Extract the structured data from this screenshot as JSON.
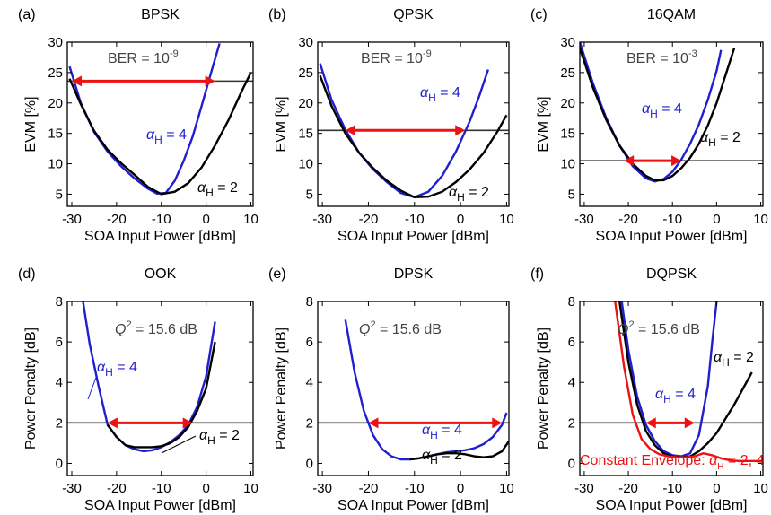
{
  "colors": {
    "alpha4": "#1f1fd0",
    "alpha2": "#000000",
    "constant": "#ee1111",
    "arrow": "#ee1111",
    "threshold": "#333333",
    "annotation_gray": "#444444"
  },
  "chart_data": [
    {
      "type": "line",
      "panel": "(a)",
      "title": "BPSK",
      "xlabel": "SOA Input Power [dBm]",
      "ylabel": "EVM [%]",
      "xlim": [
        -31,
        10.5
      ],
      "ylim": [
        3,
        30
      ],
      "xticks": [
        -30,
        -20,
        -10,
        0,
        10
      ],
      "yticks": [
        5,
        10,
        15,
        20,
        25,
        30
      ],
      "threshold": 23.6,
      "arrow": [
        -30,
        2
      ],
      "threshold_label": {
        "base": "BER = 10",
        "exp": "-9"
      },
      "series": [
        {
          "key": "alpha4",
          "label_sub": "H",
          "label_val": " = 4",
          "x": [
            -30.5,
            -28,
            -25,
            -22,
            -19,
            -16,
            -13,
            -11,
            -9,
            -7,
            -5,
            -3,
            -1,
            1,
            3
          ],
          "y": [
            26,
            20,
            15.2,
            12,
            9.6,
            7.6,
            5.9,
            5.1,
            5.2,
            7.2,
            10.5,
            14.5,
            19.5,
            24.7,
            29.8
          ]
        },
        {
          "key": "alpha2",
          "label_sub": "H",
          "label_val": " = 2",
          "x": [
            -30.5,
            -28,
            -25,
            -22,
            -19,
            -16,
            -13,
            -10,
            -7,
            -4,
            -1,
            2,
            5,
            8,
            10
          ],
          "y": [
            24,
            19.8,
            15.4,
            12.3,
            10.1,
            8.2,
            6.2,
            5,
            5.4,
            6.8,
            9.4,
            13,
            17.2,
            22,
            25
          ]
        }
      ]
    },
    {
      "type": "line",
      "panel": "(b)",
      "title": "QPSK",
      "xlabel": "SOA Input Power [dBm]",
      "ylabel": "EVM [%]",
      "xlim": [
        -31,
        10.5
      ],
      "ylim": [
        3,
        30
      ],
      "xticks": [
        -30,
        -20,
        -10,
        0,
        10
      ],
      "yticks": [
        5,
        10,
        15,
        20,
        25,
        30
      ],
      "threshold": 15.5,
      "arrow": [
        -25,
        1
      ],
      "threshold_label": {
        "base": "BER = 10",
        "exp": "-9"
      },
      "series": [
        {
          "key": "alpha4",
          "label_sub": "H",
          "label_val": " = 4",
          "x": [
            -30.5,
            -28,
            -25,
            -22,
            -19,
            -16,
            -13,
            -10,
            -7,
            -4,
            -1,
            2,
            4,
            6
          ],
          "y": [
            26.5,
            20.5,
            15.6,
            11.8,
            9.1,
            7,
            5.2,
            4.5,
            5.4,
            8,
            12,
            17,
            21,
            25.5
          ]
        },
        {
          "key": "alpha2",
          "label_sub": "H",
          "label_val": " = 2",
          "x": [
            -30.5,
            -28,
            -25,
            -22,
            -19,
            -16,
            -13,
            -10,
            -7,
            -4,
            -1,
            2,
            5,
            8,
            10
          ],
          "y": [
            24.5,
            19.5,
            15,
            11.8,
            9.3,
            7.2,
            5.6,
            4.5,
            4.6,
            5.4,
            7,
            9.1,
            11.8,
            15.3,
            18
          ]
        }
      ]
    },
    {
      "type": "line",
      "panel": "(c)",
      "title": "16QAM",
      "xlabel": "SOA Input Power [dBm]",
      "ylabel": "EVM [%]",
      "xlim": [
        -31,
        10.5
      ],
      "ylim": [
        3,
        30
      ],
      "xticks": [
        -30,
        -20,
        -10,
        0,
        10
      ],
      "yticks": [
        5,
        10,
        15,
        20,
        25,
        30
      ],
      "threshold": 10.5,
      "arrow": [
        -21,
        -8
      ],
      "threshold_label": {
        "base": "BER = 10",
        "exp": "-3"
      },
      "series": [
        {
          "key": "alpha4",
          "label_sub": "H",
          "label_val": " = 4",
          "x": [
            -31,
            -28,
            -25,
            -22,
            -19,
            -16,
            -14,
            -12,
            -10,
            -8,
            -6,
            -4,
            -2,
            0,
            1
          ],
          "y": [
            30,
            23.2,
            17.5,
            13,
            9.6,
            7.6,
            7.1,
            7.5,
            8.7,
            10.7,
            13.3,
            16.5,
            20.5,
            25.3,
            28.7
          ]
        },
        {
          "key": "alpha2",
          "label_sub": "H",
          "label_val": " = 2",
          "x": [
            -31,
            -28,
            -25,
            -22,
            -19,
            -16,
            -14,
            -12,
            -10,
            -8,
            -6,
            -4,
            -2,
            0,
            2,
            4
          ],
          "y": [
            29,
            22.5,
            17.2,
            13,
            10,
            8,
            7.3,
            7.3,
            8,
            9.3,
            11,
            13.3,
            16.3,
            20,
            24.5,
            29
          ]
        }
      ]
    },
    {
      "type": "line",
      "panel": "(d)",
      "title": "OOK",
      "xlabel": "SOA Input Power [dBm]",
      "ylabel": "Power Penalty [dB]",
      "xlim": [
        -31,
        10.5
      ],
      "ylim": [
        -0.6,
        8
      ],
      "xticks": [
        -30,
        -20,
        -10,
        0,
        10
      ],
      "yticks": [
        0,
        2,
        4,
        6,
        8
      ],
      "threshold": 2,
      "arrow": [
        -22,
        -3
      ],
      "threshold_label": {
        "base": "Q",
        "exp": "2",
        "suffix": " = 15.6 dB"
      },
      "series": [
        {
          "key": "alpha4",
          "label_sub": "H",
          "label_val": " = 4",
          "x": [
            -27.5,
            -26,
            -24,
            -22,
            -20,
            -18,
            -16,
            -14,
            -12,
            -10,
            -8,
            -6,
            -4,
            -2,
            0,
            2
          ],
          "y": [
            8,
            5.9,
            3.8,
            1.9,
            1.3,
            0.9,
            0.7,
            0.6,
            0.65,
            0.8,
            1.05,
            1.4,
            1.9,
            2.8,
            4.3,
            7
          ]
        },
        {
          "key": "alpha2",
          "label_sub": "H",
          "label_val": " = 2",
          "x": [
            -22,
            -20,
            -18,
            -16,
            -14,
            -12,
            -10,
            -8,
            -6,
            -4,
            -2,
            0,
            2
          ],
          "y": [
            1.9,
            1.3,
            0.9,
            0.8,
            0.8,
            0.8,
            0.85,
            1.0,
            1.3,
            1.8,
            2.6,
            3.7,
            6
          ]
        }
      ]
    },
    {
      "type": "line",
      "panel": "(e)",
      "title": "DPSK",
      "xlabel": "SOA Input Power [dBm]",
      "ylabel": "Power Penalty [dB]",
      "xlim": [
        -31,
        10.5
      ],
      "ylim": [
        -0.6,
        8
      ],
      "xticks": [
        -30,
        -20,
        -10,
        0,
        10
      ],
      "yticks": [
        0,
        2,
        4,
        6,
        8
      ],
      "threshold": 2,
      "arrow": [
        -20,
        9
      ],
      "threshold_label": {
        "base": "Q",
        "exp": "2",
        "suffix": " = 15.6 dB"
      },
      "series": [
        {
          "key": "alpha4",
          "label_sub": "H",
          "label_val": " = 4",
          "x": [
            -25,
            -23,
            -21,
            -19,
            -17,
            -15,
            -13,
            -11,
            -9,
            -7,
            -5,
            -3,
            -1,
            1,
            3,
            5,
            7,
            9,
            10
          ],
          "y": [
            7.1,
            4.5,
            2.6,
            1.4,
            0.7,
            0.35,
            0.2,
            0.2,
            0.25,
            0.35,
            0.45,
            0.55,
            0.6,
            0.65,
            0.75,
            0.95,
            1.3,
            1.9,
            2.5
          ]
        },
        {
          "key": "alpha2",
          "label_sub": "H",
          "label_val": " = 2",
          "x": [
            -11,
            -9,
            -7,
            -5,
            -3,
            -1,
            1,
            3,
            5,
            7,
            9,
            10.5
          ],
          "y": [
            0.2,
            0.25,
            0.35,
            0.45,
            0.5,
            0.5,
            0.45,
            0.35,
            0.3,
            0.35,
            0.6,
            1.1
          ]
        }
      ]
    },
    {
      "type": "line",
      "panel": "(f)",
      "title": "DQPSK",
      "xlabel": "SOA Input Power [dBm]",
      "ylabel": "Power Penalty [dB]",
      "xlim": [
        -31,
        10.5
      ],
      "ylim": [
        -0.6,
        8
      ],
      "xticks": [
        -30,
        -20,
        -10,
        0,
        10
      ],
      "yticks": [
        0,
        2,
        4,
        6,
        8
      ],
      "threshold": 2,
      "arrow": [
        -16,
        -5
      ],
      "threshold_label": {
        "base": "Q",
        "exp": "2",
        "suffix": " = 15.6 dB"
      },
      "series": [
        {
          "key": "alpha4",
          "label_sub": "H",
          "label_val": " = 4",
          "x": [
            -21.5,
            -20,
            -18,
            -16,
            -14,
            -12,
            -10,
            -8,
            -6,
            -4,
            -2,
            -1,
            0
          ],
          "y": [
            8,
            5.6,
            3.3,
            1.9,
            1.1,
            0.6,
            0.4,
            0.35,
            0.5,
            1.4,
            3.8,
            6,
            8
          ]
        },
        {
          "key": "alpha2",
          "label_sub": "H",
          "label_val": " = 2",
          "x": [
            -22,
            -20,
            -18,
            -16,
            -14,
            -12,
            -10,
            -8,
            -6,
            -4,
            -2,
            0,
            2,
            4,
            6,
            8
          ],
          "y": [
            8,
            5,
            2.9,
            1.6,
            0.9,
            0.5,
            0.35,
            0.3,
            0.35,
            0.6,
            1.0,
            1.5,
            2.2,
            2.9,
            3.7,
            4.5
          ]
        },
        {
          "key": "constant",
          "label_text": "Constant Envelope: ",
          "label_sub": "H",
          "label_val": " = 2, 4",
          "x": [
            -23,
            -21,
            -19,
            -17,
            -15,
            -13,
            -11,
            -9,
            -7,
            -5,
            -3,
            -1,
            1,
            3,
            5,
            7,
            9,
            10.5
          ],
          "y": [
            8,
            4.8,
            2.4,
            1.2,
            0.7,
            0.45,
            0.35,
            0.3,
            0.3,
            0.35,
            0.5,
            0.4,
            0.25,
            0.15,
            0.12,
            0.12,
            0.12,
            0.12
          ]
        }
      ]
    }
  ]
}
